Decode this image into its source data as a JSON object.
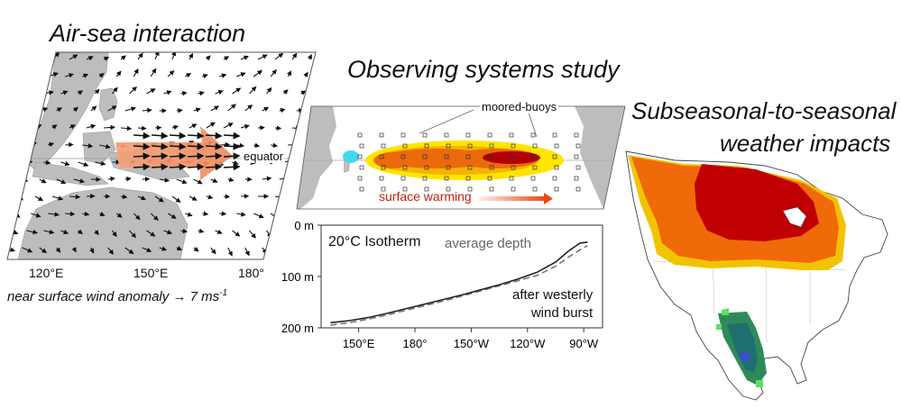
{
  "panel1": {
    "title": "Air-sea interaction",
    "equator_label": "equator",
    "lon_ticks": [
      "120°E",
      "150°E",
      "180°"
    ],
    "caption": "near surface wind anomaly",
    "arrow_symbol": "→",
    "scale_label": "7 ms",
    "scale_exp": "-1"
  },
  "panel2": {
    "title": "Observing systems study",
    "buoys_label": "moored-buoys",
    "warming_label": "surface warming",
    "warming_color": "#cc1a10",
    "chart_data": {
      "type": "line",
      "title": "20°C  Isotherm",
      "x_ticks": [
        "150°E",
        "180°",
        "150°W",
        "120°W",
        "90°W"
      ],
      "y_ticks": [
        "0 m",
        "100 m",
        "200 m"
      ],
      "ylim": [
        0,
        200
      ],
      "series": [
        {
          "name": "average depth",
          "style": "dashed",
          "color": "#777777",
          "x": [
            135,
            145,
            155,
            165,
            175,
            185,
            195,
            205,
            215,
            225,
            235,
            245,
            255,
            262,
            268,
            272
          ],
          "y": [
            195,
            190,
            183,
            175,
            166,
            157,
            148,
            138,
            128,
            118,
            108,
            98,
            80,
            62,
            48,
            40
          ]
        },
        {
          "name": "after westerly wind burst",
          "style": "solid",
          "color": "#222222",
          "x": [
            135,
            145,
            155,
            165,
            175,
            185,
            195,
            205,
            215,
            225,
            235,
            245,
            255,
            262,
            268,
            272
          ],
          "y": [
            190,
            186,
            180,
            172,
            163,
            154,
            145,
            136,
            126,
            116,
            105,
            92,
            72,
            50,
            35,
            33
          ]
        }
      ],
      "annotation_avg": "average depth",
      "annotation_wwb_1": "after westerly",
      "annotation_wwb_2": "wind burst"
    }
  },
  "panel3": {
    "title_line1": "Subseasonal-to-seasonal",
    "title_line2": "weather impacts"
  }
}
